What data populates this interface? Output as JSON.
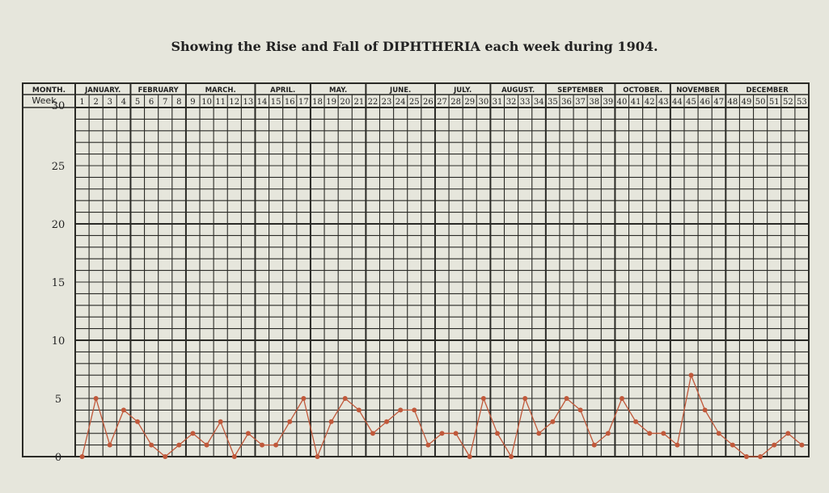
{
  "chart_data": {
    "type": "line",
    "title": "Showing the Rise and Fall of DIPHTHERIA each week during 1904.",
    "header_month_label": "MONTH.",
    "header_week_label": "Week",
    "months": [
      {
        "name": "JANUARY.",
        "weeks": [
          1,
          4
        ]
      },
      {
        "name": "FEBRUARY",
        "weeks": [
          5,
          8
        ]
      },
      {
        "name": "MARCH.",
        "weeks": [
          9,
          13
        ]
      },
      {
        "name": "APRIL.",
        "weeks": [
          14,
          17
        ]
      },
      {
        "name": "MAY.",
        "weeks": [
          18,
          21
        ]
      },
      {
        "name": "JUNE.",
        "weeks": [
          22,
          26
        ]
      },
      {
        "name": "JULY.",
        "weeks": [
          27,
          30
        ]
      },
      {
        "name": "AUGUST.",
        "weeks": [
          31,
          34
        ]
      },
      {
        "name": "SEPTEMBER",
        "weeks": [
          35,
          39
        ]
      },
      {
        "name": "OCTOBER.",
        "weeks": [
          40,
          43
        ]
      },
      {
        "name": "NOVEMBER",
        "weeks": [
          44,
          47
        ]
      },
      {
        "name": "DECEMBER",
        "weeks": [
          48,
          53
        ]
      }
    ],
    "x": [
      1,
      2,
      3,
      4,
      5,
      6,
      7,
      8,
      9,
      10,
      11,
      12,
      13,
      14,
      15,
      16,
      17,
      18,
      19,
      20,
      21,
      22,
      23,
      24,
      25,
      26,
      27,
      28,
      29,
      30,
      31,
      32,
      33,
      34,
      35,
      36,
      37,
      38,
      39,
      40,
      41,
      42,
      43,
      44,
      45,
      46,
      47,
      48,
      49,
      50,
      51,
      52,
      53
    ],
    "values": [
      0,
      5,
      1,
      4,
      3,
      1,
      0,
      1,
      2,
      1,
      3,
      0,
      2,
      1,
      1,
      3,
      5,
      0,
      3,
      5,
      4,
      2,
      3,
      4,
      4,
      1,
      2,
      2,
      0,
      5,
      2,
      0,
      5,
      2,
      3,
      5,
      4,
      1,
      2,
      5,
      3,
      2,
      2,
      1,
      7,
      4,
      2,
      1,
      0,
      0,
      1,
      2,
      1
    ],
    "ylim": [
      0,
      30
    ],
    "yticks": [
      0,
      5,
      10,
      15,
      20,
      25,
      30
    ],
    "grid": true,
    "line_color": "#c0583a",
    "grid_color": "#2a2a26"
  }
}
